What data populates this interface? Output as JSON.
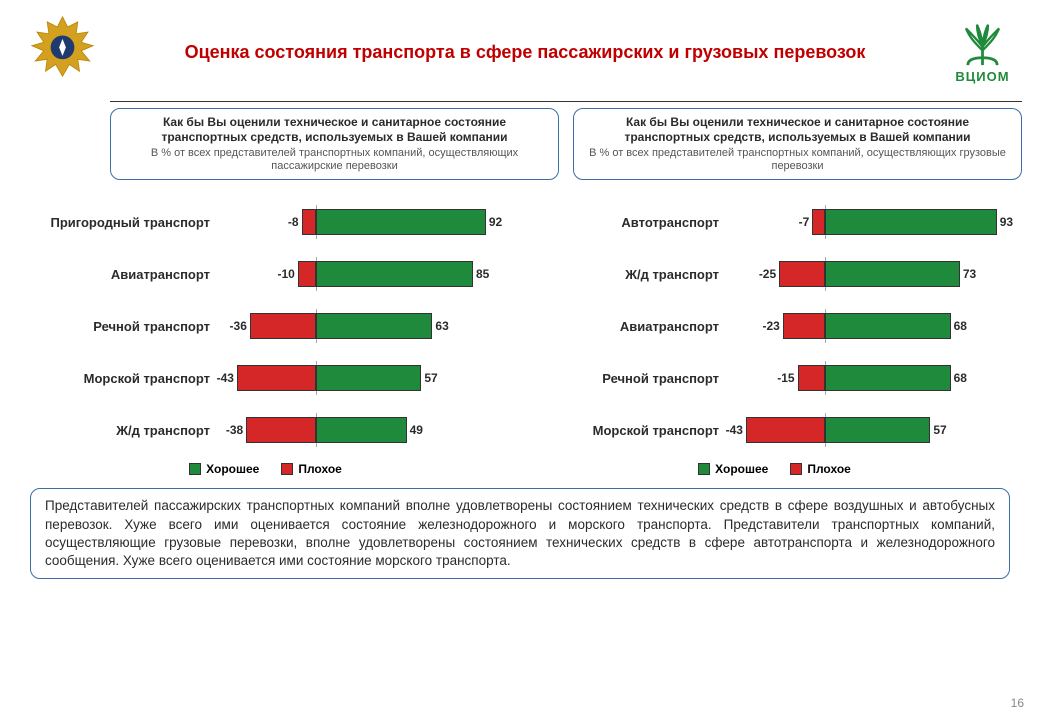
{
  "title": "Оценка состояния транспорта в сфере пассажирских и грузовых перевозок",
  "logo_text": "ВЦИОМ",
  "colors": {
    "good": "#1f8a3b",
    "bad": "#d62728",
    "border": "#333333",
    "title": "#c00000",
    "panel_border": "#3a6ea5"
  },
  "panel_left": {
    "title": "Как бы Вы оценили техническое и санитарное состояние транспортных средств, используемых в Вашей компании",
    "sub": "В % от всех представителей транспортных компаний, осуществляющих пассажирские перевозки"
  },
  "panel_right": {
    "title": "Как бы Вы оценили техническое и санитарное состояние транспортных средств, используемых в Вашей компании",
    "sub": "В % от всех представителей транспортных компаний, осуществляющих грузовые перевозки"
  },
  "chart_left": {
    "type": "bar",
    "x_min": -50,
    "x_max": 100,
    "zero_pct": 33.3,
    "scale": 1.6,
    "rows": [
      {
        "label": "Пригородный транспорт",
        "neg": -8,
        "pos": 92
      },
      {
        "label": "Авиатранспорт",
        "neg": -10,
        "pos": 85
      },
      {
        "label": "Речной транспорт",
        "neg": -36,
        "pos": 63
      },
      {
        "label": "Морской транспорт",
        "neg": -43,
        "pos": 57
      },
      {
        "label": "Ж/д транспорт",
        "neg": -38,
        "pos": 49
      }
    ]
  },
  "chart_right": {
    "type": "bar",
    "x_min": -50,
    "x_max": 100,
    "zero_pct": 33.3,
    "scale": 1.6,
    "rows": [
      {
        "label": "Автотранспорт",
        "neg": -7,
        "pos": 93
      },
      {
        "label": "Ж/д транспорт",
        "neg": -25,
        "pos": 73
      },
      {
        "label": "Авиатранспорт",
        "neg": -23,
        "pos": 68
      },
      {
        "label": "Речной транспорт",
        "neg": -15,
        "pos": 68
      },
      {
        "label": "Морской транспорт",
        "neg": -43,
        "pos": 57
      }
    ]
  },
  "legend": {
    "good": "Хорошее",
    "bad": "Плохое"
  },
  "footer": "Представителей пассажирских транспортных компаний вполне удовлетворены состоянием технических средств в сфере воздушных и автобусных перевозок. Хуже всего ими оценивается состояние железнодорожного и морского транспорта. Представители транспортных компаний, осуществляющие грузовые перевозки, вполне удовлетворены состоянием технических средств в сфере автотранспорта и железнодорожного сообщения. Хуже всего оценивается ими состояние морского транспорта.",
  "page_number": "16"
}
